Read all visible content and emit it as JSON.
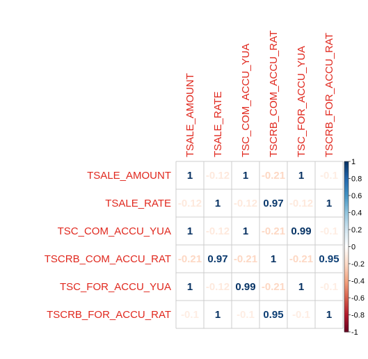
{
  "chart_data": {
    "type": "heatmap",
    "variables": [
      "TSALE_AMOUNT",
      "TSALE_RATE",
      "TSC_COM_ACCU_YUA",
      "TSCRB_COM_ACCU_RAT",
      "TSC_FOR_ACCU_YUA",
      "TSCRB_FOR_ACCU_RAT"
    ],
    "matrix": [
      [
        1,
        -0.12,
        1,
        -0.21,
        1,
        -0.1
      ],
      [
        -0.12,
        1,
        -0.12,
        0.97,
        -0.12,
        1
      ],
      [
        1,
        -0.12,
        1,
        -0.21,
        0.99,
        -0.1
      ],
      [
        -0.21,
        0.97,
        -0.21,
        1,
        -0.21,
        0.95
      ],
      [
        1,
        -0.12,
        0.99,
        -0.21,
        1,
        -0.1
      ],
      [
        -0.1,
        1,
        -0.1,
        0.95,
        -0.1,
        1
      ]
    ],
    "value_labels": [
      [
        "1",
        "-0.12",
        "1",
        "-0.21",
        "1",
        "-0.1"
      ],
      [
        "-0.12",
        "1",
        "-0.12",
        "0.97",
        "-0.12",
        "1"
      ],
      [
        "1",
        "-0.12",
        "1",
        "-0.21",
        "0.99",
        "-0.1"
      ],
      [
        "-0.21",
        "0.97",
        "-0.21",
        "1",
        "-0.21",
        "0.95"
      ],
      [
        "1",
        "-0.12",
        "0.99",
        "-0.21",
        "1",
        "-0.1"
      ],
      [
        "-0.1",
        "1",
        "-0.1",
        "0.95",
        "-0.1",
        "1"
      ]
    ],
    "color_scale": {
      "range": [
        -1,
        1
      ],
      "tick_labels": [
        "1",
        "0.8",
        "0.6",
        "0.4",
        "0.2",
        "0",
        "-0.2",
        "-0.4",
        "-0.6",
        "-0.8",
        "-1"
      ],
      "negative_color": "#67001f",
      "zero_color": "#ffffff",
      "positive_color": "#053061"
    },
    "label_color": "#e0281e",
    "grid": true,
    "legend_position": "right"
  }
}
